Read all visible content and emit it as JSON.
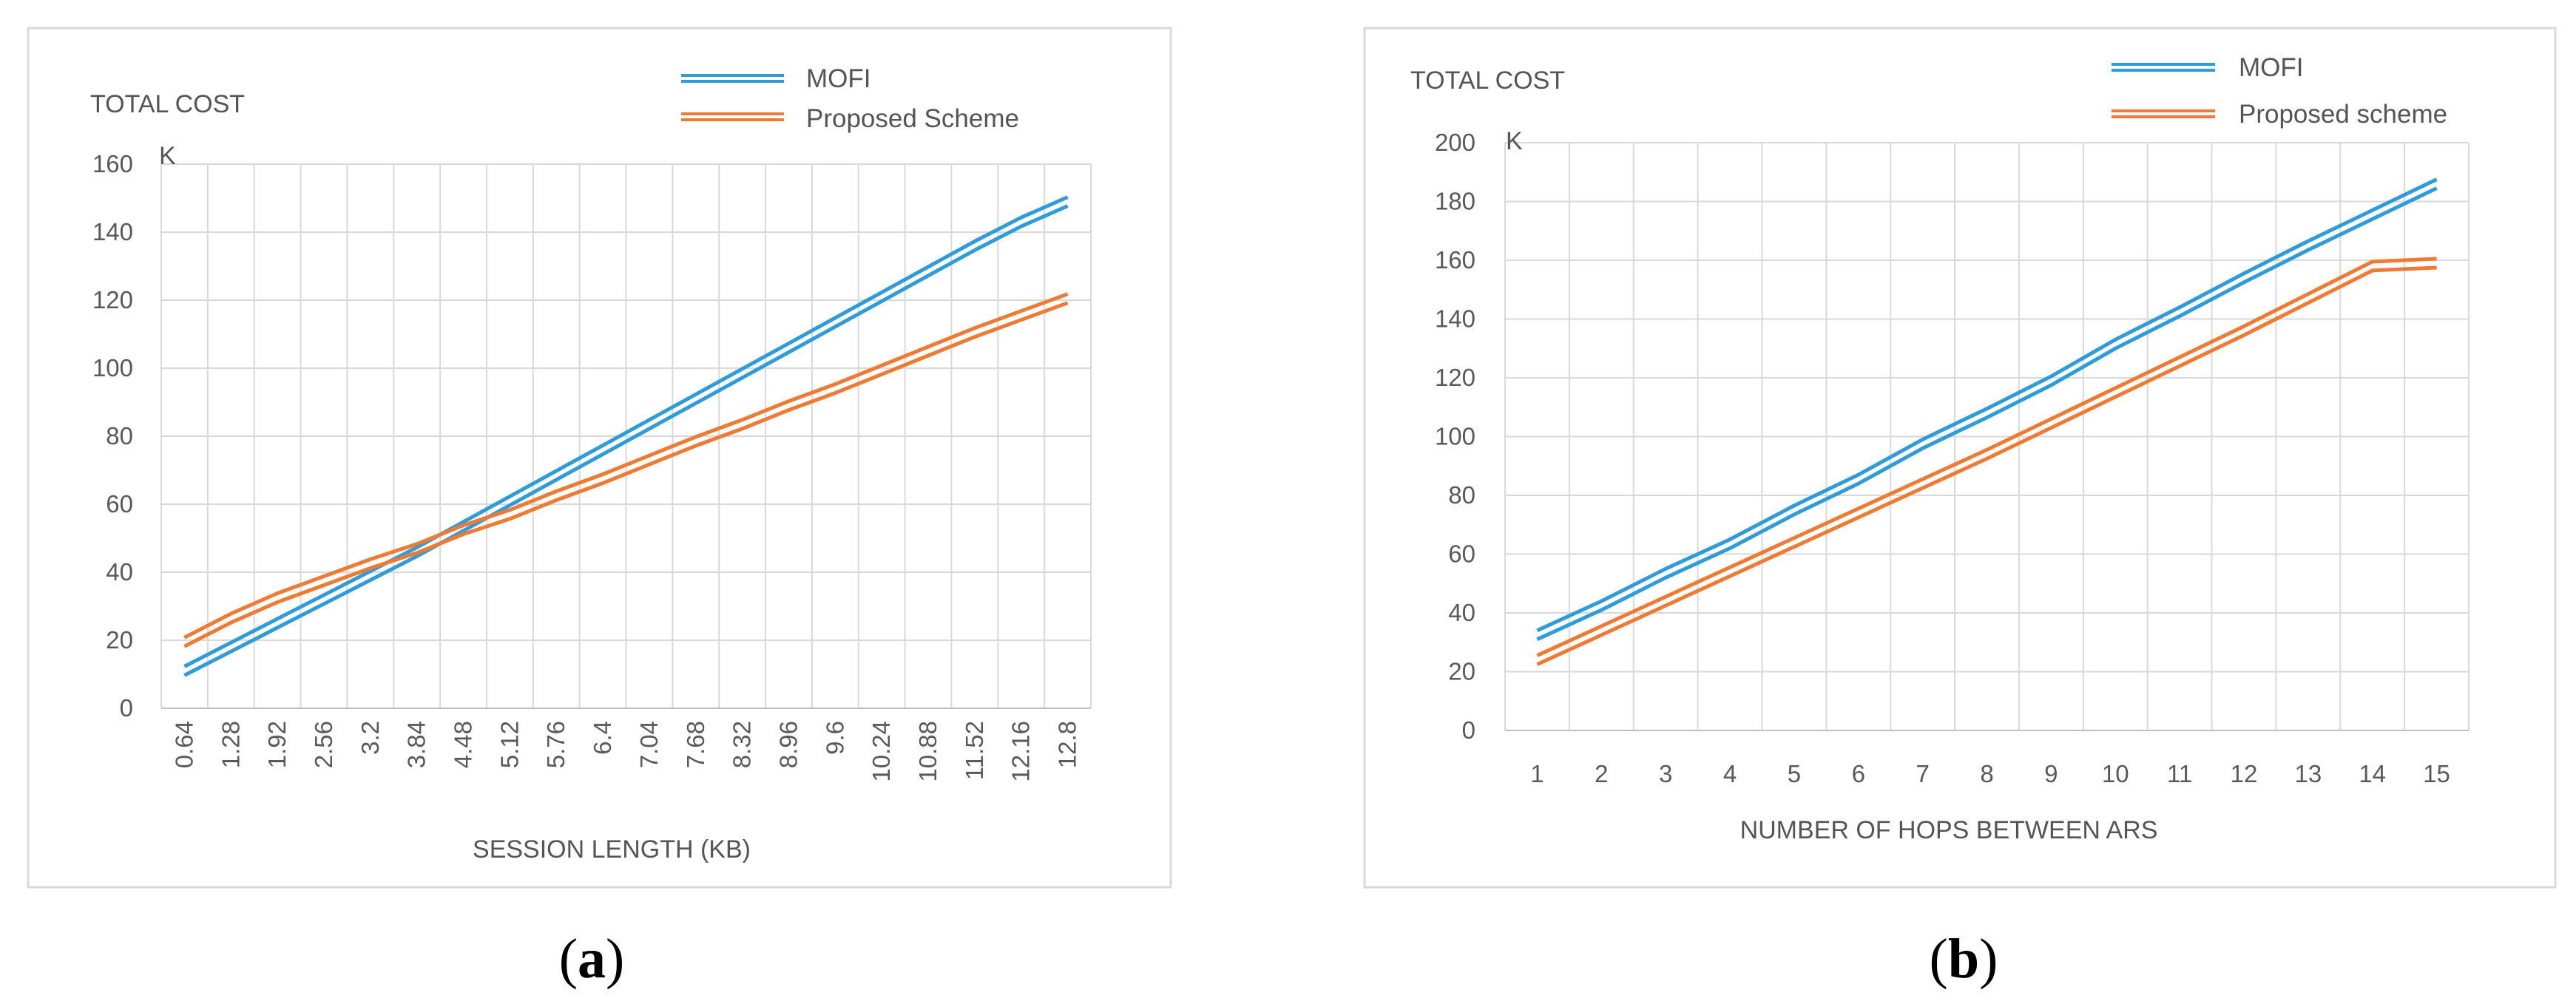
{
  "chart_data": [
    {
      "type": "line",
      "caption_letter": "a",
      "title": "TOTAL COST",
      "y_unit": "K",
      "xlabel": "SESSION LENGTH (KB)",
      "ylabel": "TOTAL COST",
      "ylim": [
        0,
        160
      ],
      "yticks": [
        "0",
        "20",
        "40",
        "60",
        "80",
        "100",
        "120",
        "140",
        "160"
      ],
      "categories": [
        "0.64",
        "1.28",
        "1.92",
        "2.56",
        "3.2",
        "3.84",
        "4.48",
        "5.12",
        "5.76",
        "6.4",
        "7.04",
        "7.68",
        "8.32",
        "8.96",
        "9.6",
        "10.24",
        "10.88",
        "11.52",
        "12.16",
        "12.8"
      ],
      "legend_position": "top-right",
      "grid": true,
      "series": [
        {
          "name": "MOFI",
          "color": "#2e9cdb",
          "values": [
            11,
            18,
            25,
            32,
            39,
            46,
            53.5,
            61,
            68.5,
            76,
            83.5,
            91,
            98.5,
            106,
            113.5,
            121,
            128.5,
            136,
            143,
            149
          ]
        },
        {
          "name": "Proposed Scheme",
          "color": "#f07a32",
          "values": [
            19.5,
            26.5,
            32.5,
            37.5,
            42.5,
            47,
            52.5,
            57,
            62.5,
            67.5,
            73,
            78.5,
            83.5,
            89,
            94,
            99.5,
            105,
            110.5,
            115.5,
            120.5
          ]
        }
      ]
    },
    {
      "type": "line",
      "caption_letter": "b",
      "title": "TOTAL COST",
      "y_unit": "K",
      "xlabel": "NUMBER OF HOPS BETWEEN ARS",
      "ylabel": "TOTAL COST",
      "ylim": [
        0,
        200
      ],
      "yticks": [
        "0",
        "20",
        "40",
        "60",
        "80",
        "100",
        "120",
        "140",
        "160",
        "180",
        "200"
      ],
      "categories": [
        "1",
        "2",
        "3",
        "4",
        "5",
        "6",
        "7",
        "8",
        "9",
        "10",
        "11",
        "12",
        "13",
        "14",
        "15"
      ],
      "legend_position": "top-right",
      "grid": true,
      "series": [
        {
          "name": "MOFI",
          "color": "#2e9cdb",
          "values": [
            32.5,
            42.5,
            53.5,
            63.5,
            75,
            85.5,
            97.5,
            108,
            119,
            131.5,
            142.5,
            154,
            165,
            175.5,
            186
          ]
        },
        {
          "name": "Proposed scheme",
          "color": "#f07a32",
          "values": [
            24,
            34,
            44,
            54,
            64,
            74,
            84,
            94,
            104.5,
            115,
            125.5,
            136,
            147,
            158,
            159
          ]
        }
      ]
    }
  ]
}
